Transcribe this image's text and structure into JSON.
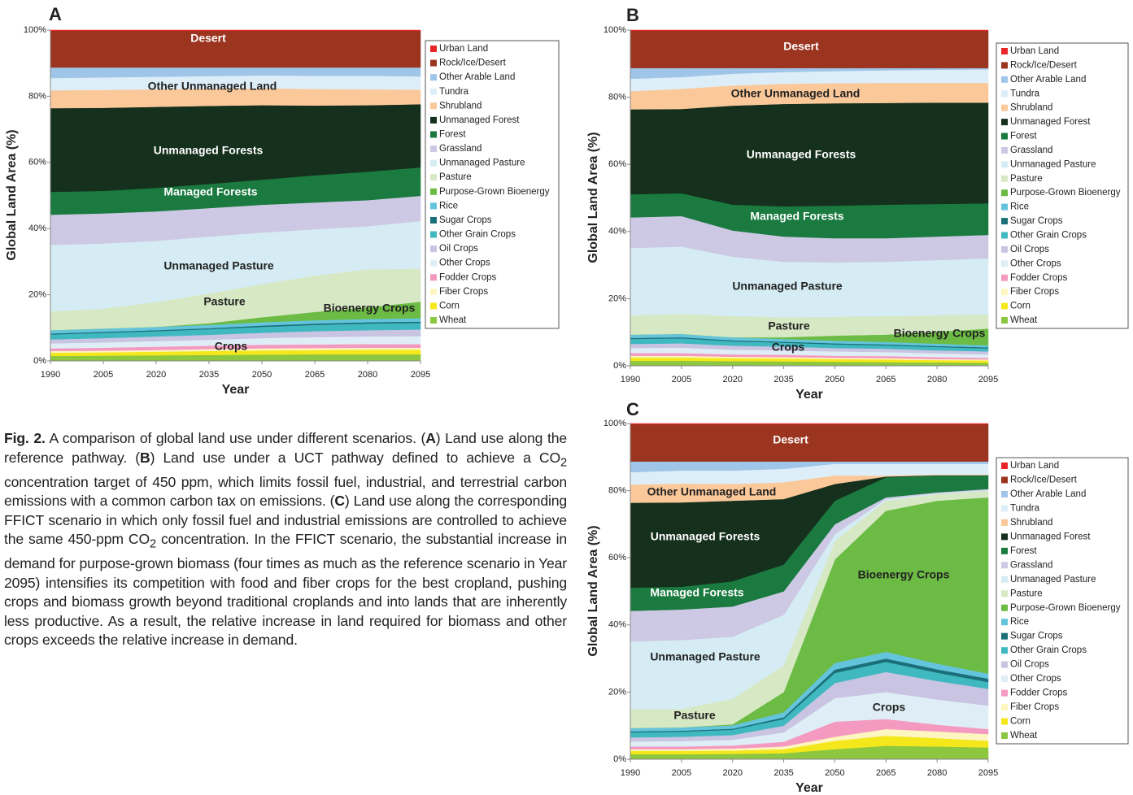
{
  "chart_data": [
    {
      "type": "stacked-area",
      "panel": "A",
      "ylabel": "Global Land Area (%)",
      "xlabel": "Year",
      "x": [
        1990,
        2005,
        2020,
        2035,
        2050,
        2065,
        2080,
        2095
      ],
      "xlim": [
        1990,
        2095
      ],
      "xticks": [
        1990,
        2005,
        2020,
        2035,
        2050,
        2065,
        2080,
        2095
      ],
      "ylim": [
        0,
        100
      ],
      "yticks": [
        {
          "value": 0,
          "label": "0%"
        },
        {
          "value": 20,
          "label": "20%"
        },
        {
          "value": 40,
          "label": "40%"
        },
        {
          "value": 60,
          "label": "60%"
        },
        {
          "value": 80,
          "label": "80%"
        },
        {
          "value": 100,
          "label": "100%"
        }
      ],
      "annotations": [
        "Desert",
        "Other Unmanaged Land",
        "Unmanaged Forests",
        "Managed Forests",
        "Unmanaged Pasture",
        "Pasture",
        "Bioenergy Crops",
        "Crops"
      ],
      "series": [
        {
          "name": "Urban Land",
          "color": "#e8262a",
          "values": [
            0.2,
            0.2,
            0.2,
            0.2,
            0.2,
            0.2,
            0.2,
            0.2
          ]
        },
        {
          "name": "Rock/Ice/Desert",
          "color": "#9b3520",
          "values": [
            11.1,
            11.1,
            11.1,
            11.1,
            11.1,
            11.1,
            11.1,
            11.1
          ]
        },
        {
          "name": "Other Arable Land",
          "color": "#9fc5e8",
          "values": [
            3.2,
            3.0,
            2.8,
            2.6,
            2.4,
            2.5,
            2.5,
            2.7
          ]
        },
        {
          "name": "Tundra",
          "color": "#ddeef8",
          "values": [
            3.7,
            3.8,
            3.8,
            3.8,
            3.9,
            4.0,
            4.1,
            4.0
          ]
        },
        {
          "name": "Shrubland",
          "color": "#fbc89a",
          "values": [
            5.4,
            5.4,
            5.3,
            5.2,
            5.1,
            5.0,
            4.8,
            4.4
          ]
        },
        {
          "name": "Unmanaged Forest",
          "color": "#15301c",
          "values": [
            25.3,
            25.1,
            24.5,
            23.6,
            22.5,
            21.1,
            20.1,
            19.1
          ]
        },
        {
          "name": "Forest",
          "color": "#1a7a3f",
          "values": [
            6.9,
            6.8,
            7.1,
            7.3,
            7.6,
            8.2,
            8.6,
            8.6
          ]
        },
        {
          "name": "Grassland",
          "color": "#cdc8e4",
          "values": [
            9.1,
            9.1,
            8.9,
            8.6,
            8.4,
            8.1,
            7.9,
            7.6
          ]
        },
        {
          "name": "Unmanaged Pasture",
          "color": "#d5ecf4",
          "values": [
            20.1,
            19.7,
            18.5,
            17.2,
            15.6,
            14.0,
            13.0,
            14.4
          ]
        },
        {
          "name": "Pasture",
          "color": "#d6e8c4",
          "values": [
            5.7,
            6.0,
            7.5,
            9.0,
            10.0,
            11.0,
            11.5,
            10.0
          ]
        },
        {
          "name": "Purpose-Grown Bioenergy",
          "color": "#6cbb44",
          "values": [
            0,
            0,
            0,
            0.5,
            1.5,
            2.5,
            3.5,
            5.0
          ]
        },
        {
          "name": "Rice",
          "color": "#64c4dc",
          "values": [
            1.0,
            1.0,
            1.0,
            1.0,
            1.0,
            1.0,
            1.0,
            1.0
          ]
        },
        {
          "name": "Sugar Crops",
          "color": "#1a6f78",
          "values": [
            0.3,
            0.3,
            0.3,
            0.3,
            0.4,
            0.4,
            0.4,
            0.4
          ]
        },
        {
          "name": "Other Grain Crops",
          "color": "#40b8c0",
          "values": [
            1.5,
            1.6,
            1.6,
            1.7,
            1.8,
            1.9,
            2.0,
            2.0
          ]
        },
        {
          "name": "Oil Crops",
          "color": "#c8c4e2",
          "values": [
            1.2,
            1.3,
            1.4,
            1.5,
            1.6,
            1.8,
            1.9,
            2.0
          ]
        },
        {
          "name": "Other Crops",
          "color": "#dfeef6",
          "values": [
            1.5,
            1.6,
            1.7,
            1.8,
            2.0,
            2.2,
            2.3,
            2.4
          ]
        },
        {
          "name": "Fodder Crops",
          "color": "#f49ac0",
          "values": [
            0.8,
            0.9,
            1.0,
            1.0,
            1.1,
            1.1,
            1.1,
            1.1
          ]
        },
        {
          "name": "Fiber Crops",
          "color": "#fdf6c0",
          "values": [
            0.5,
            0.5,
            0.5,
            0.6,
            0.6,
            0.6,
            0.6,
            0.6
          ]
        },
        {
          "name": "Corn",
          "color": "#f4e81c",
          "values": [
            1.0,
            1.0,
            1.1,
            1.2,
            1.3,
            1.3,
            1.4,
            1.4
          ]
        },
        {
          "name": "Wheat",
          "color": "#8dc63f",
          "values": [
            1.5,
            1.6,
            1.7,
            1.8,
            1.9,
            2.0,
            2.0,
            2.0
          ]
        }
      ]
    },
    {
      "type": "stacked-area",
      "panel": "B",
      "ylabel": "Global Land Area (%)",
      "xlabel": "Year",
      "x": [
        1990,
        2005,
        2020,
        2035,
        2050,
        2065,
        2080,
        2095
      ],
      "xlim": [
        1990,
        2095
      ],
      "xticks": [
        1990,
        2005,
        2020,
        2035,
        2050,
        2065,
        2080,
        2095
      ],
      "ylim": [
        0,
        100
      ],
      "yticks": [
        {
          "value": 0,
          "label": "0%"
        },
        {
          "value": 20,
          "label": "20%"
        },
        {
          "value": 40,
          "label": "40%"
        },
        {
          "value": 60,
          "label": "60%"
        },
        {
          "value": 80,
          "label": "80%"
        },
        {
          "value": 100,
          "label": "100%"
        }
      ],
      "annotations": [
        "Desert",
        "Other Unmanaged Land",
        "Unmanaged Forests",
        "Managed Forests",
        "Unmanaged Pasture",
        "Pasture",
        "Bioenergy Crops",
        "Crops"
      ],
      "series": [
        {
          "name": "Urban Land",
          "color": "#e8262a",
          "values": [
            0.2,
            0.2,
            0.2,
            0.2,
            0.2,
            0.2,
            0.2,
            0.2
          ]
        },
        {
          "name": "Rock/Ice/Desert",
          "color": "#9b3520",
          "values": [
            11.1,
            11.1,
            11.1,
            11.1,
            11.1,
            11.1,
            11.1,
            11.1
          ]
        },
        {
          "name": "Other Arable Land",
          "color": "#9fc5e8",
          "values": [
            3.2,
            2.7,
            1.7,
            1.2,
            0.9,
            0.7,
            0.5,
            0.4
          ]
        },
        {
          "name": "Tundra",
          "color": "#ddeef8",
          "values": [
            3.7,
            3.5,
            3.5,
            3.5,
            3.6,
            3.7,
            3.9,
            4.0
          ]
        },
        {
          "name": "Shrubland",
          "color": "#fbc89a",
          "values": [
            5.4,
            6.0,
            6.0,
            6.0,
            6.0,
            6.0,
            5.9,
            5.9
          ]
        },
        {
          "name": "Unmanaged Forest",
          "color": "#15301c",
          "values": [
            25.3,
            25.1,
            29.5,
            30.5,
            30.5,
            30.3,
            30.2,
            30.0
          ]
        },
        {
          "name": "Forest",
          "color": "#1a7a3f",
          "values": [
            6.9,
            6.8,
            7.7,
            9.0,
            9.7,
            10.0,
            9.7,
            9.4
          ]
        },
        {
          "name": "Grassland",
          "color": "#cdc8e4",
          "values": [
            9.1,
            9.1,
            7.8,
            7.5,
            7.2,
            7.0,
            7.0,
            7.0
          ]
        },
        {
          "name": "Unmanaged Pasture",
          "color": "#d5ecf4",
          "values": [
            20.1,
            20.0,
            17.7,
            16.5,
            16.2,
            16.2,
            16.4,
            16.7
          ]
        },
        {
          "name": "Pasture",
          "color": "#d6e8c4",
          "values": [
            5.7,
            6.0,
            6.3,
            6.0,
            5.6,
            5.5,
            5.0,
            4.2
          ]
        },
        {
          "name": "Purpose-Grown Bioenergy",
          "color": "#6cbb44",
          "values": [
            0,
            0,
            0,
            0.5,
            1.5,
            2.2,
            3.5,
            5.0
          ]
        },
        {
          "name": "Rice",
          "color": "#64c4dc",
          "values": [
            1.0,
            1.0,
            0.9,
            0.8,
            0.8,
            0.7,
            0.7,
            0.6
          ]
        },
        {
          "name": "Sugar Crops",
          "color": "#1a6f78",
          "values": [
            0.3,
            0.3,
            0.3,
            0.3,
            0.3,
            0.3,
            0.3,
            0.3
          ]
        },
        {
          "name": "Other Grain Crops",
          "color": "#40b8c0",
          "values": [
            1.5,
            1.5,
            1.3,
            1.2,
            1.1,
            1.0,
            1.0,
            0.9
          ]
        },
        {
          "name": "Oil Crops",
          "color": "#c8c4e2",
          "values": [
            1.2,
            1.3,
            1.2,
            1.1,
            1.0,
            1.0,
            0.9,
            0.9
          ]
        },
        {
          "name": "Other Crops",
          "color": "#dfeef6",
          "values": [
            1.5,
            1.6,
            1.4,
            1.3,
            1.3,
            1.2,
            1.1,
            1.0
          ]
        },
        {
          "name": "Fodder Crops",
          "color": "#f49ac0",
          "values": [
            0.8,
            0.8,
            0.7,
            0.7,
            0.6,
            0.6,
            0.6,
            0.5
          ]
        },
        {
          "name": "Fiber Crops",
          "color": "#fdf6c0",
          "values": [
            0.5,
            0.5,
            0.4,
            0.4,
            0.4,
            0.4,
            0.3,
            0.3
          ]
        },
        {
          "name": "Corn",
          "color": "#f4e81c",
          "values": [
            1.0,
            1.0,
            0.9,
            0.9,
            0.8,
            0.8,
            0.7,
            0.7
          ]
        },
        {
          "name": "Wheat",
          "color": "#8dc63f",
          "values": [
            1.5,
            1.5,
            1.4,
            1.3,
            1.2,
            1.1,
            1.0,
            0.9
          ]
        }
      ]
    },
    {
      "type": "stacked-area",
      "panel": "C",
      "ylabel": "Global Land Area (%)",
      "xlabel": "Year",
      "x": [
        1990,
        2005,
        2020,
        2035,
        2050,
        2065,
        2080,
        2095
      ],
      "xlim": [
        1990,
        2095
      ],
      "xticks": [
        1990,
        2005,
        2020,
        2035,
        2050,
        2065,
        2080,
        2095
      ],
      "ylim": [
        0,
        100
      ],
      "yticks": [
        {
          "value": 0,
          "label": "0%"
        },
        {
          "value": 20,
          "label": "20%"
        },
        {
          "value": 40,
          "label": "40%"
        },
        {
          "value": 60,
          "label": "60%"
        },
        {
          "value": 80,
          "label": "80%"
        },
        {
          "value": 100,
          "label": "100%"
        }
      ],
      "annotations": [
        "Desert",
        "Other Unmanaged Land",
        "Unmanaged Forests",
        "Managed Forests",
        "Unmanaged Pasture",
        "Pasture",
        "Bioenergy Crops",
        "Crops"
      ],
      "series": [
        {
          "name": "Urban Land",
          "color": "#e8262a",
          "values": [
            0.2,
            0.2,
            0.2,
            0.2,
            0.2,
            0.2,
            0.2,
            0.2
          ]
        },
        {
          "name": "Rock/Ice/Desert",
          "color": "#9b3520",
          "values": [
            11.1,
            11.1,
            11.1,
            11.1,
            11.1,
            11.1,
            11.1,
            11.1
          ]
        },
        {
          "name": "Other Arable Land",
          "color": "#9fc5e8",
          "values": [
            3.2,
            2.7,
            2.7,
            2.2,
            0.7,
            0.7,
            0.7,
            0.7
          ]
        },
        {
          "name": "Tundra",
          "color": "#ddeef8",
          "values": [
            3.7,
            3.9,
            4.0,
            4.0,
            3.5,
            3.5,
            3.2,
            3.2
          ]
        },
        {
          "name": "Shrubland",
          "color": "#fbc89a",
          "values": [
            5.4,
            5.6,
            5.0,
            5.0,
            2.5,
            0.3,
            0.2,
            0.2
          ]
        },
        {
          "name": "Unmanaged Forest",
          "color": "#15301c",
          "values": [
            25.3,
            25.1,
            24.0,
            19.5,
            5.0,
            0.2,
            0.1,
            0.1
          ]
        },
        {
          "name": "Forest",
          "color": "#1a7a3f",
          "values": [
            6.9,
            6.8,
            7.5,
            8.0,
            7.0,
            6.0,
            5.0,
            4.0
          ]
        },
        {
          "name": "Grassland",
          "color": "#cdc8e4",
          "values": [
            9.1,
            9.1,
            9.0,
            7.0,
            3.0,
            0.5,
            0.3,
            0.3
          ]
        },
        {
          "name": "Unmanaged Pasture",
          "color": "#d5ecf4",
          "values": [
            20.1,
            20.5,
            18.5,
            15.0,
            2.0,
            0.5,
            0.2,
            0.2
          ]
        },
        {
          "name": "Pasture",
          "color": "#d6e8c4",
          "values": [
            5.7,
            5.5,
            7.6,
            8.0,
            5.5,
            3.0,
            2.0,
            2.0
          ]
        },
        {
          "name": "Purpose-Grown Bioenergy",
          "color": "#6cbb44",
          "values": [
            0,
            0,
            0.3,
            6.0,
            30.8,
            42.0,
            48.5,
            52.5
          ]
        },
        {
          "name": "Rice",
          "color": "#64c4dc",
          "values": [
            1.0,
            1.0,
            1.0,
            1.5,
            2.0,
            2.0,
            1.7,
            1.5
          ]
        },
        {
          "name": "Sugar Crops",
          "color": "#1a6f78",
          "values": [
            0.3,
            0.3,
            0.3,
            0.5,
            1.0,
            1.0,
            1.0,
            1.0
          ]
        },
        {
          "name": "Other Grain Crops",
          "color": "#40b8c0",
          "values": [
            1.5,
            1.5,
            1.6,
            2.0,
            3.0,
            3.0,
            2.5,
            2.0
          ]
        },
        {
          "name": "Oil Crops",
          "color": "#c8c4e2",
          "values": [
            1.2,
            1.3,
            1.4,
            2.0,
            4.5,
            6.0,
            5.5,
            5.0
          ]
        },
        {
          "name": "Other Crops",
          "color": "#dfeef6",
          "values": [
            1.5,
            1.6,
            1.7,
            2.8,
            7.0,
            8.0,
            7.5,
            7.0
          ]
        },
        {
          "name": "Fodder Crops",
          "color": "#f49ac0",
          "values": [
            0.8,
            0.8,
            0.9,
            1.4,
            4.5,
            3.0,
            2.0,
            1.5
          ]
        },
        {
          "name": "Fiber Crops",
          "color": "#fdf6c0",
          "values": [
            0.5,
            0.5,
            0.6,
            0.8,
            1.2,
            2.0,
            2.0,
            2.0
          ]
        },
        {
          "name": "Corn",
          "color": "#f4e81c",
          "values": [
            1.0,
            1.0,
            1.0,
            1.2,
            2.5,
            3.0,
            2.5,
            2.0
          ]
        },
        {
          "name": "Wheat",
          "color": "#8dc63f",
          "values": [
            1.5,
            1.5,
            1.6,
            1.8,
            3.0,
            4.0,
            3.8,
            3.5
          ]
        }
      ]
    }
  ],
  "caption": [
    "Fig. 2.",
    " A comparison of global land use under different scenarios. (",
    "A",
    ") Land use along the reference pathway. (",
    "B",
    ") Land use under a UCT pathway defined to achieve a CO",
    "2",
    " concentration target of 450 ppm, which limits fossil fuel, industrial, and terrestrial carbon emissions with a common carbon tax on emissions. (",
    "C",
    ") Land use along the corresponding FFICT scenario in which only fossil fuel and industrial emissions are controlled to achieve the same 450-ppm CO",
    "2",
    " concentration. In the FFICT scenario, the substantial increase in demand for purpose-grown biomass (four times as much as the reference scenario in Year 2095) intensifies its competition with food and fiber crops for the best cropland, pushing crops and biomass growth beyond traditional croplands and into lands that are inherently less productive. As a result, the relative increase in land required for biomass and other crops exceeds the relative increase in demand."
  ]
}
